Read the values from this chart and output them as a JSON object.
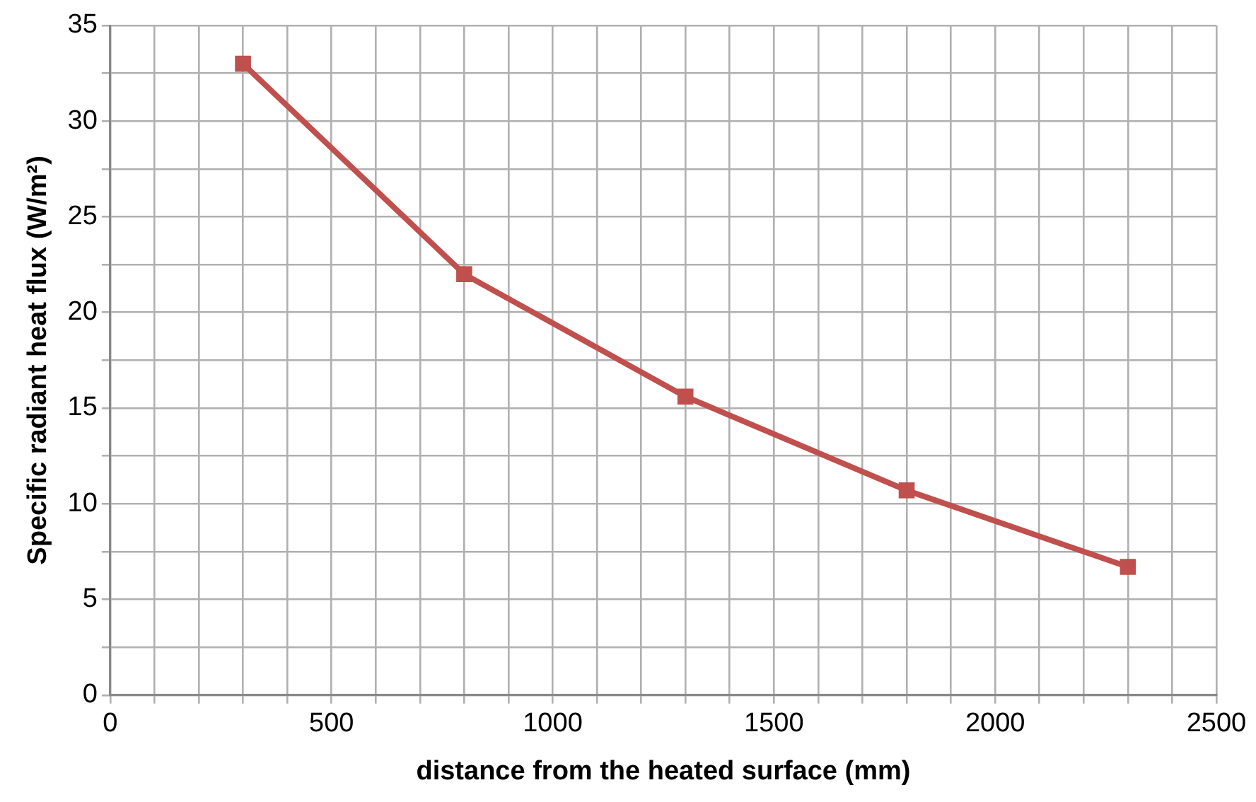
{
  "chart_data": {
    "type": "line",
    "xlabel": "distance from the heated surface (mm)",
    "ylabel": "Specific radiant heat flux (W/m²)",
    "x": [
      300,
      800,
      1300,
      1800,
      2300
    ],
    "series": [
      {
        "color": "#c0504d",
        "values": [
          33,
          22,
          15.6,
          10.7,
          6.7
        ]
      }
    ],
    "xlim": [
      0,
      2500
    ],
    "xticks": [
      0,
      {
        "value": 100,
        "label": null
      },
      {
        "value": 200,
        "label": null
      },
      {
        "value": 300,
        "label": null
      },
      {
        "value": 400,
        "label": null
      },
      500,
      {
        "value": 600,
        "label": null
      },
      {
        "value": 700,
        "label": null
      },
      {
        "value": 800,
        "label": null
      },
      {
        "value": 900,
        "label": null
      },
      1000,
      {
        "value": 1100,
        "label": null
      },
      {
        "value": 1200,
        "label": null
      },
      {
        "value": 1300,
        "label": null
      },
      {
        "value": 1400,
        "label": null
      },
      1500,
      {
        "value": 1600,
        "label": null
      },
      {
        "value": 1700,
        "label": null
      },
      {
        "value": 1800,
        "label": null
      },
      {
        "value": 1900,
        "label": null
      },
      2000,
      {
        "value": 2100,
        "label": null
      },
      {
        "value": 2200,
        "label": null
      },
      {
        "value": 2300,
        "label": null
      },
      {
        "value": 2400,
        "label": null
      },
      2500
    ],
    "ylim": [
      0,
      35
    ],
    "yticks": [
      0,
      {
        "value": 2.5,
        "label": null
      },
      5,
      {
        "value": 7.5,
        "label": null
      },
      10,
      {
        "value": 12.5,
        "label": null
      },
      15,
      {
        "value": 17.5,
        "label": null
      },
      20,
      {
        "value": 22.5,
        "label": null
      },
      25,
      {
        "value": 27.5,
        "label": null
      },
      30,
      {
        "value": 32.5,
        "label": null
      },
      35
    ],
    "grid": true,
    "legend": false,
    "marker": "square",
    "line_style": "solid"
  }
}
